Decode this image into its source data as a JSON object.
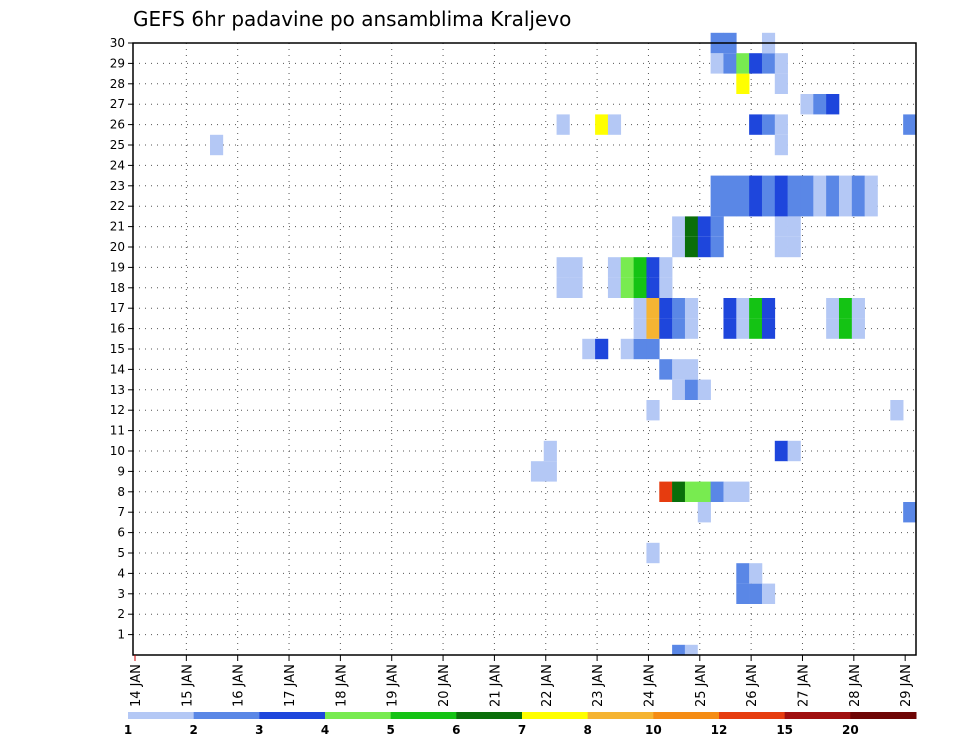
{
  "chart_data": {
    "type": "heatmap",
    "title": "GEFS 6hr padavine po ansamblima Kraljevo",
    "xlabel": "",
    "ylabel": "",
    "x_tick_labels": [
      "14 JAN",
      "15 JAN",
      "16 JAN",
      "17 JAN",
      "18 JAN",
      "19 JAN",
      "20 JAN",
      "21 JAN",
      "22 JAN",
      "23 JAN",
      "24 JAN",
      "25 JAN",
      "26 JAN",
      "27 JAN",
      "28 JAN",
      "29 JAN"
    ],
    "y_tick_labels": [
      "1",
      "2",
      "3",
      "4",
      "5",
      "6",
      "7",
      "8",
      "9",
      "10",
      "11",
      "12",
      "13",
      "14",
      "15",
      "16",
      "17",
      "18",
      "19",
      "20",
      "21",
      "22",
      "23",
      "24",
      "25",
      "26",
      "27",
      "28",
      "29",
      "30"
    ],
    "xlim": [
      0,
      61
    ],
    "ylim": [
      0,
      30
    ],
    "grid": true,
    "colorbar": {
      "labels": [
        "1",
        "2",
        "3",
        "4",
        "5",
        "6",
        "7",
        "8",
        "10",
        "12",
        "15",
        "20"
      ],
      "colors": [
        "#b4c8f5",
        "#5a87e6",
        "#1e46dc",
        "#78eb50",
        "#14c314",
        "#0a6e0a",
        "#ffff00",
        "#f5b432",
        "#f58c14",
        "#e63c0f",
        "#a00f0f",
        "#6e0505"
      ]
    },
    "cells": [
      [
        0,
        0,
        2
      ],
      [
        45,
        45,
        2
      ],
      [
        45,
        45,
        2
      ],
      [
        46,
        46,
        1
      ],
      [
        47,
        47,
        1
      ],
      [
        48,
        48,
        1
      ],
      [
        53,
        53,
        1
      ],
      [
        60,
        60,
        2
      ],
      [
        36,
        36,
        1
      ],
      [
        47,
        47,
        1
      ],
      [
        48,
        48,
        2
      ],
      [
        49,
        49,
        1
      ],
      [
        39,
        39,
        1
      ],
      [
        41,
        41,
        1
      ],
      [
        47,
        47,
        1
      ],
      [
        38,
        38,
        2
      ],
      [
        40,
        40,
        1
      ],
      [
        43,
        43,
        1
      ],
      [
        58,
        58,
        2
      ],
      [
        39,
        39,
        1
      ],
      [
        45,
        45,
        2
      ],
      [
        46,
        46,
        2
      ],
      [
        47,
        47,
        1
      ],
      [
        50,
        50,
        1
      ],
      [
        44,
        44,
        1
      ],
      [
        46,
        46,
        3
      ],
      [
        48,
        48,
        1
      ],
      [
        59,
        59,
        2
      ],
      [
        39,
        39,
        1
      ],
      [
        40,
        40,
        2
      ],
      [
        41,
        41,
        2
      ],
      [
        42,
        42,
        2
      ],
      [
        43,
        43,
        3
      ],
      [
        44,
        44,
        1
      ],
      [
        38,
        38,
        1
      ],
      [
        40,
        40,
        1
      ],
      [
        41,
        41,
        2
      ],
      [
        44,
        44,
        1
      ],
      [
        49,
        49,
        1
      ],
      [
        50,
        50,
        1
      ],
      [
        41,
        41,
        1
      ],
      [
        46,
        46,
        3
      ],
      [
        47,
        47,
        1
      ],
      [
        41,
        41,
        1
      ],
      [
        46,
        46,
        3
      ],
      [
        47,
        47,
        1
      ],
      [
        48,
        48,
        1
      ],
      [
        50,
        50,
        1
      ],
      [
        51,
        51,
        3
      ],
      [
        53,
        53,
        1
      ],
      [
        58,
        58,
        1
      ],
      [
        38,
        38,
        1
      ],
      [
        40,
        40,
        1
      ],
      [
        41,
        41,
        2
      ],
      [
        42,
        42,
        2
      ],
      [
        44,
        44,
        1
      ]
    ],
    "rows": {
      "1": [],
      "2": [],
      "3": [
        [
          47,
          2
        ],
        [
          48,
          2
        ],
        [
          49,
          1
        ]
      ],
      "4": [
        [
          47,
          2
        ],
        [
          48,
          1
        ]
      ],
      "5": [
        [
          40,
          1
        ]
      ],
      "6": [],
      "7": [
        [
          44,
          1
        ],
        [
          60,
          2
        ]
      ],
      "8": [
        [
          41,
          10
        ],
        [
          42,
          6
        ],
        [
          43,
          4
        ],
        [
          44,
          4
        ],
        [
          45,
          2
        ],
        [
          46,
          1
        ],
        [
          47,
          1
        ]
      ],
      "9": [
        [
          31,
          1
        ],
        [
          32,
          1
        ]
      ],
      "10": [
        [
          32,
          1
        ],
        [
          50,
          3
        ],
        [
          51,
          1
        ]
      ],
      "11": [],
      "12": [
        [
          40,
          1
        ],
        [
          59,
          1
        ]
      ],
      "13": [
        [
          42,
          1
        ],
        [
          43,
          2
        ],
        [
          44,
          1
        ]
      ],
      "14": [
        [
          41,
          2
        ],
        [
          42,
          1
        ],
        [
          43,
          1
        ]
      ],
      "15": [
        [
          35,
          1
        ],
        [
          36,
          3
        ],
        [
          38,
          1
        ],
        [
          39,
          2
        ],
        [
          40,
          2
        ]
      ],
      "16": [
        [
          39,
          1
        ],
        [
          40,
          8
        ],
        [
          41,
          3
        ],
        [
          42,
          2
        ],
        [
          43,
          1
        ],
        [
          46,
          3
        ],
        [
          47,
          1
        ],
        [
          48,
          5
        ],
        [
          49,
          3
        ],
        [
          54,
          1
        ],
        [
          55,
          5
        ],
        [
          56,
          1
        ]
      ],
      "17": [
        [
          39,
          1
        ],
        [
          40,
          8
        ],
        [
          41,
          3
        ],
        [
          42,
          2
        ],
        [
          43,
          1
        ],
        [
          46,
          3
        ],
        [
          47,
          1
        ],
        [
          48,
          5
        ],
        [
          49,
          3
        ],
        [
          54,
          1
        ],
        [
          55,
          5
        ],
        [
          56,
          1
        ]
      ],
      "18": [
        [
          33,
          1
        ],
        [
          34,
          1
        ],
        [
          37,
          1
        ],
        [
          38,
          4
        ],
        [
          39,
          5
        ],
        [
          40,
          3
        ],
        [
          41,
          1
        ]
      ],
      "19": [
        [
          33,
          1
        ],
        [
          34,
          1
        ],
        [
          37,
          1
        ],
        [
          38,
          4
        ],
        [
          39,
          5
        ],
        [
          40,
          3
        ],
        [
          41,
          1
        ]
      ],
      "20": [
        [
          42,
          1
        ],
        [
          43,
          6
        ],
        [
          44,
          3
        ],
        [
          45,
          2
        ],
        [
          50,
          1
        ],
        [
          51,
          1
        ]
      ],
      "21": [
        [
          42,
          1
        ],
        [
          43,
          6
        ],
        [
          44,
          3
        ],
        [
          45,
          2
        ],
        [
          50,
          1
        ],
        [
          51,
          1
        ]
      ],
      "22": [
        [
          45,
          2
        ],
        [
          46,
          2
        ],
        [
          47,
          2
        ],
        [
          48,
          3
        ],
        [
          49,
          2
        ],
        [
          50,
          3
        ],
        [
          51,
          2
        ],
        [
          52,
          2
        ],
        [
          53,
          1
        ],
        [
          54,
          2
        ],
        [
          55,
          1
        ],
        [
          56,
          2
        ],
        [
          57,
          1
        ]
      ],
      "23": [
        [
          45,
          2
        ],
        [
          46,
          2
        ],
        [
          47,
          2
        ],
        [
          48,
          3
        ],
        [
          49,
          2
        ],
        [
          50,
          3
        ],
        [
          51,
          2
        ],
        [
          52,
          2
        ],
        [
          53,
          1
        ],
        [
          54,
          2
        ],
        [
          55,
          1
        ],
        [
          56,
          2
        ],
        [
          57,
          1
        ]
      ],
      "24": [],
      "25": [
        [
          6,
          1
        ],
        [
          50,
          1
        ]
      ],
      "26": [
        [
          33,
          1
        ],
        [
          36,
          7
        ],
        [
          37,
          1
        ],
        [
          48,
          3
        ],
        [
          49,
          2
        ],
        [
          50,
          1
        ],
        [
          60,
          2
        ]
      ],
      "27": [
        [
          52,
          1
        ],
        [
          53,
          2
        ],
        [
          54,
          3
        ]
      ],
      "28": [
        [
          47,
          7
        ],
        [
          50,
          1
        ]
      ],
      "29": [
        [
          45,
          1
        ],
        [
          46,
          2
        ],
        [
          47,
          4
        ],
        [
          48,
          3
        ],
        [
          49,
          2
        ],
        [
          50,
          1
        ]
      ],
      "30": [
        [
          45,
          2
        ],
        [
          46,
          2
        ],
        [
          49,
          1
        ]
      ]
    }
  }
}
